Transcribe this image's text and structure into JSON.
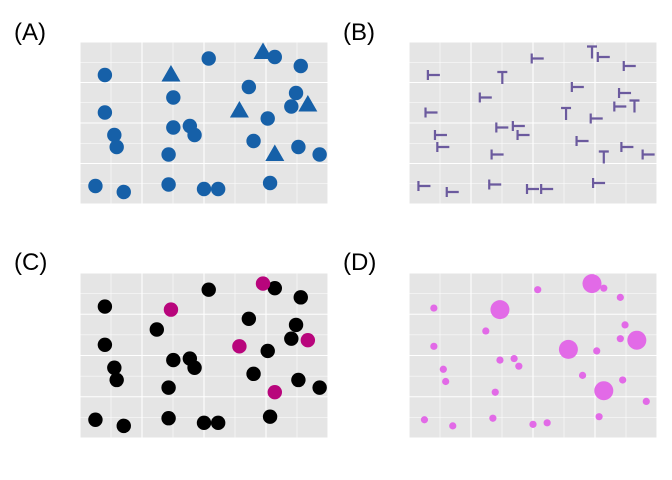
{
  "colors": {
    "panel_bg": "#e5e5e5",
    "grid": "#ffffff",
    "blue": "#1660a8",
    "purple": "#6b5a9e",
    "black": "#000000",
    "magenta": "#b8057c",
    "pink": "#e26ae7"
  },
  "chart_data": [
    {
      "panel": "(A)",
      "type": "scatter",
      "encoding": "shape",
      "xlim": [
        0,
        1
      ],
      "ylim": [
        0,
        1
      ],
      "grid": true,
      "points": [
        {
          "x": 0.08,
          "y": 0.82,
          "k": "c"
        },
        {
          "x": 0.08,
          "y": 0.57,
          "k": "c"
        },
        {
          "x": 0.12,
          "y": 0.42,
          "k": "c"
        },
        {
          "x": 0.13,
          "y": 0.34,
          "k": "c"
        },
        {
          "x": 0.04,
          "y": 0.08,
          "k": "c"
        },
        {
          "x": 0.16,
          "y": 0.04,
          "k": "c"
        },
        {
          "x": 0.37,
          "y": 0.67,
          "k": "c"
        },
        {
          "x": 0.35,
          "y": 0.29,
          "k": "c"
        },
        {
          "x": 0.35,
          "y": 0.09,
          "k": "c"
        },
        {
          "x": 0.37,
          "y": 0.47,
          "k": "c"
        },
        {
          "x": 0.44,
          "y": 0.48,
          "k": "c"
        },
        {
          "x": 0.46,
          "y": 0.42,
          "k": "c"
        },
        {
          "x": 0.52,
          "y": 0.93,
          "k": "c"
        },
        {
          "x": 0.5,
          "y": 0.06,
          "k": "c"
        },
        {
          "x": 0.56,
          "y": 0.06,
          "k": "c"
        },
        {
          "x": 0.69,
          "y": 0.74,
          "k": "c"
        },
        {
          "x": 0.71,
          "y": 0.38,
          "k": "c"
        },
        {
          "x": 0.77,
          "y": 0.53,
          "k": "c"
        },
        {
          "x": 0.78,
          "y": 0.1,
          "k": "c"
        },
        {
          "x": 0.8,
          "y": 0.94,
          "k": "c"
        },
        {
          "x": 0.87,
          "y": 0.61,
          "k": "c"
        },
        {
          "x": 0.89,
          "y": 0.7,
          "k": "c"
        },
        {
          "x": 0.91,
          "y": 0.88,
          "k": "c"
        },
        {
          "x": 0.9,
          "y": 0.34,
          "k": "c"
        },
        {
          "x": 0.99,
          "y": 0.29,
          "k": "c"
        },
        {
          "x": 0.36,
          "y": 0.82,
          "k": "t"
        },
        {
          "x": 0.65,
          "y": 0.58,
          "k": "t"
        },
        {
          "x": 0.75,
          "y": 0.97,
          "k": "t"
        },
        {
          "x": 0.94,
          "y": 0.62,
          "k": "t"
        },
        {
          "x": 0.8,
          "y": 0.29,
          "k": "t"
        }
      ]
    },
    {
      "panel": "(B)",
      "type": "scatter",
      "encoding": "glyph",
      "xlim": [
        0,
        1
      ],
      "ylim": [
        0,
        1
      ],
      "grid": true,
      "points": [
        {
          "x": 0.08,
          "y": 0.82,
          "k": "h"
        },
        {
          "x": 0.07,
          "y": 0.57,
          "k": "h"
        },
        {
          "x": 0.11,
          "y": 0.42,
          "k": "h"
        },
        {
          "x": 0.12,
          "y": 0.34,
          "k": "h"
        },
        {
          "x": 0.04,
          "y": 0.08,
          "k": "h"
        },
        {
          "x": 0.16,
          "y": 0.04,
          "k": "h"
        },
        {
          "x": 0.3,
          "y": 0.67,
          "k": "h"
        },
        {
          "x": 0.35,
          "y": 0.29,
          "k": "h"
        },
        {
          "x": 0.34,
          "y": 0.09,
          "k": "h"
        },
        {
          "x": 0.37,
          "y": 0.47,
          "k": "h"
        },
        {
          "x": 0.44,
          "y": 0.48,
          "k": "h"
        },
        {
          "x": 0.46,
          "y": 0.42,
          "k": "h"
        },
        {
          "x": 0.52,
          "y": 0.93,
          "k": "h"
        },
        {
          "x": 0.5,
          "y": 0.06,
          "k": "h"
        },
        {
          "x": 0.56,
          "y": 0.06,
          "k": "h"
        },
        {
          "x": 0.69,
          "y": 0.74,
          "k": "h"
        },
        {
          "x": 0.71,
          "y": 0.38,
          "k": "h"
        },
        {
          "x": 0.77,
          "y": 0.53,
          "k": "h"
        },
        {
          "x": 0.78,
          "y": 0.1,
          "k": "h"
        },
        {
          "x": 0.8,
          "y": 0.94,
          "k": "h"
        },
        {
          "x": 0.87,
          "y": 0.61,
          "k": "h"
        },
        {
          "x": 0.89,
          "y": 0.7,
          "k": "h"
        },
        {
          "x": 0.91,
          "y": 0.88,
          "k": "h"
        },
        {
          "x": 0.9,
          "y": 0.34,
          "k": "h"
        },
        {
          "x": 0.99,
          "y": 0.29,
          "k": "h"
        },
        {
          "x": 0.37,
          "y": 0.8,
          "k": "t"
        },
        {
          "x": 0.64,
          "y": 0.56,
          "k": "t"
        },
        {
          "x": 0.75,
          "y": 0.97,
          "k": "t"
        },
        {
          "x": 0.93,
          "y": 0.61,
          "k": "t"
        },
        {
          "x": 0.8,
          "y": 0.27,
          "k": "t"
        }
      ]
    },
    {
      "panel": "(C)",
      "type": "scatter",
      "encoding": "color",
      "xlim": [
        0,
        1
      ],
      "ylim": [
        0,
        1
      ],
      "grid": true,
      "points": [
        {
          "x": 0.08,
          "y": 0.82,
          "k": "a"
        },
        {
          "x": 0.08,
          "y": 0.57,
          "k": "a"
        },
        {
          "x": 0.12,
          "y": 0.42,
          "k": "a"
        },
        {
          "x": 0.13,
          "y": 0.34,
          "k": "a"
        },
        {
          "x": 0.04,
          "y": 0.08,
          "k": "a"
        },
        {
          "x": 0.16,
          "y": 0.04,
          "k": "a"
        },
        {
          "x": 0.3,
          "y": 0.67,
          "k": "a"
        },
        {
          "x": 0.35,
          "y": 0.29,
          "k": "a"
        },
        {
          "x": 0.35,
          "y": 0.09,
          "k": "a"
        },
        {
          "x": 0.37,
          "y": 0.47,
          "k": "a"
        },
        {
          "x": 0.44,
          "y": 0.48,
          "k": "a"
        },
        {
          "x": 0.46,
          "y": 0.42,
          "k": "a"
        },
        {
          "x": 0.52,
          "y": 0.93,
          "k": "a"
        },
        {
          "x": 0.5,
          "y": 0.06,
          "k": "a"
        },
        {
          "x": 0.56,
          "y": 0.06,
          "k": "a"
        },
        {
          "x": 0.69,
          "y": 0.74,
          "k": "a"
        },
        {
          "x": 0.71,
          "y": 0.38,
          "k": "a"
        },
        {
          "x": 0.77,
          "y": 0.53,
          "k": "a"
        },
        {
          "x": 0.78,
          "y": 0.1,
          "k": "a"
        },
        {
          "x": 0.8,
          "y": 0.94,
          "k": "a"
        },
        {
          "x": 0.87,
          "y": 0.61,
          "k": "a"
        },
        {
          "x": 0.89,
          "y": 0.7,
          "k": "a"
        },
        {
          "x": 0.91,
          "y": 0.88,
          "k": "a"
        },
        {
          "x": 0.9,
          "y": 0.34,
          "k": "a"
        },
        {
          "x": 0.99,
          "y": 0.29,
          "k": "a"
        },
        {
          "x": 0.36,
          "y": 0.8,
          "k": "b"
        },
        {
          "x": 0.65,
          "y": 0.56,
          "k": "b"
        },
        {
          "x": 0.75,
          "y": 0.97,
          "k": "b"
        },
        {
          "x": 0.94,
          "y": 0.6,
          "k": "b"
        },
        {
          "x": 0.8,
          "y": 0.26,
          "k": "b"
        }
      ]
    },
    {
      "panel": "(D)",
      "type": "scatter",
      "encoding": "size",
      "xlim": [
        0,
        1
      ],
      "ylim": [
        0,
        1
      ],
      "grid": true,
      "points": [
        {
          "x": 0.08,
          "y": 0.81,
          "k": "s"
        },
        {
          "x": 0.08,
          "y": 0.56,
          "k": "s"
        },
        {
          "x": 0.12,
          "y": 0.41,
          "k": "s"
        },
        {
          "x": 0.13,
          "y": 0.33,
          "k": "s"
        },
        {
          "x": 0.04,
          "y": 0.08,
          "k": "s"
        },
        {
          "x": 0.16,
          "y": 0.04,
          "k": "s"
        },
        {
          "x": 0.3,
          "y": 0.66,
          "k": "s"
        },
        {
          "x": 0.34,
          "y": 0.26,
          "k": "s"
        },
        {
          "x": 0.33,
          "y": 0.09,
          "k": "s"
        },
        {
          "x": 0.36,
          "y": 0.47,
          "k": "s"
        },
        {
          "x": 0.42,
          "y": 0.48,
          "k": "s"
        },
        {
          "x": 0.44,
          "y": 0.43,
          "k": "s"
        },
        {
          "x": 0.52,
          "y": 0.93,
          "k": "s"
        },
        {
          "x": 0.5,
          "y": 0.05,
          "k": "s"
        },
        {
          "x": 0.56,
          "y": 0.06,
          "k": "s"
        },
        {
          "x": 0.71,
          "y": 0.37,
          "k": "s"
        },
        {
          "x": 0.77,
          "y": 0.53,
          "k": "s"
        },
        {
          "x": 0.78,
          "y": 0.1,
          "k": "s"
        },
        {
          "x": 0.8,
          "y": 0.94,
          "k": "s"
        },
        {
          "x": 0.87,
          "y": 0.61,
          "k": "s"
        },
        {
          "x": 0.89,
          "y": 0.7,
          "k": "s"
        },
        {
          "x": 0.87,
          "y": 0.88,
          "k": "s"
        },
        {
          "x": 0.88,
          "y": 0.34,
          "k": "s"
        },
        {
          "x": 0.98,
          "y": 0.2,
          "k": "s"
        },
        {
          "x": 0.36,
          "y": 0.8,
          "k": "l"
        },
        {
          "x": 0.65,
          "y": 0.54,
          "k": "l"
        },
        {
          "x": 0.75,
          "y": 0.97,
          "k": "l"
        },
        {
          "x": 0.94,
          "y": 0.6,
          "k": "l"
        },
        {
          "x": 0.8,
          "y": 0.27,
          "k": "l"
        }
      ]
    }
  ]
}
